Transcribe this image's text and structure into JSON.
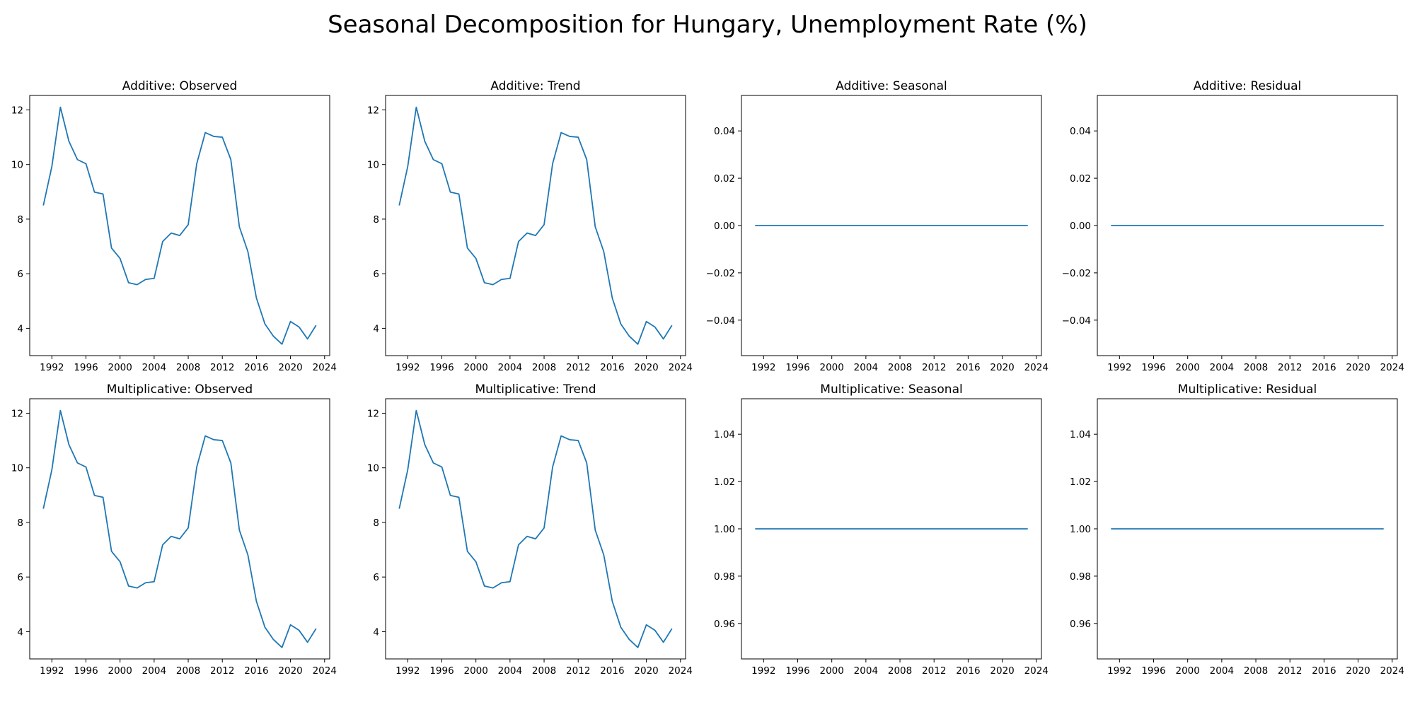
{
  "figure_title": "Seasonal Decomposition for Hungary, Unemployment Rate (%)",
  "line_color": "#1f77b4",
  "chart_data": [
    {
      "type": "line",
      "title": "Additive: Observed",
      "x": [
        1991,
        1992,
        1993,
        1994,
        1995,
        1996,
        1997,
        1998,
        1999,
        2000,
        2001,
        2002,
        2003,
        2004,
        2005,
        2006,
        2007,
        2008,
        2009,
        2010,
        2011,
        2012,
        2013,
        2014,
        2015,
        2016,
        2017,
        2018,
        2019,
        2020,
        2021,
        2022,
        2023
      ],
      "y": [
        8.5,
        9.93,
        12.1,
        10.85,
        10.18,
        10.03,
        8.99,
        8.92,
        6.94,
        6.56,
        5.67,
        5.6,
        5.79,
        5.83,
        7.18,
        7.49,
        7.4,
        7.8,
        10.03,
        11.17,
        11.03,
        11.0,
        10.18,
        7.72,
        6.81,
        5.11,
        4.16,
        3.71,
        3.42,
        4.25,
        4.05,
        3.61,
        4.11
      ],
      "xticks": [
        "1992",
        "1996",
        "2000",
        "2004",
        "2008",
        "2012",
        "2016",
        "2020",
        "2024"
      ],
      "yticks": [
        "4",
        "6",
        "8",
        "10",
        "12"
      ],
      "xlim": [
        1989.4,
        2024.6
      ],
      "ylim": [
        3.0,
        12.53
      ]
    },
    {
      "type": "line",
      "title": "Additive: Trend",
      "x": [
        1991,
        1992,
        1993,
        1994,
        1995,
        1996,
        1997,
        1998,
        1999,
        2000,
        2001,
        2002,
        2003,
        2004,
        2005,
        2006,
        2007,
        2008,
        2009,
        2010,
        2011,
        2012,
        2013,
        2014,
        2015,
        2016,
        2017,
        2018,
        2019,
        2020,
        2021,
        2022,
        2023
      ],
      "y": [
        8.5,
        9.93,
        12.1,
        10.85,
        10.18,
        10.03,
        8.99,
        8.92,
        6.94,
        6.56,
        5.67,
        5.6,
        5.79,
        5.83,
        7.18,
        7.49,
        7.4,
        7.8,
        10.03,
        11.17,
        11.03,
        11.0,
        10.18,
        7.72,
        6.81,
        5.11,
        4.16,
        3.71,
        3.42,
        4.25,
        4.05,
        3.61,
        4.11
      ],
      "xticks": [
        "1992",
        "1996",
        "2000",
        "2004",
        "2008",
        "2012",
        "2016",
        "2020",
        "2024"
      ],
      "yticks": [
        "4",
        "6",
        "8",
        "10",
        "12"
      ],
      "xlim": [
        1989.4,
        2024.6
      ],
      "ylim": [
        3.0,
        12.53
      ]
    },
    {
      "type": "line",
      "title": "Additive: Seasonal",
      "x": [
        1991,
        1992,
        1993,
        1994,
        1995,
        1996,
        1997,
        1998,
        1999,
        2000,
        2001,
        2002,
        2003,
        2004,
        2005,
        2006,
        2007,
        2008,
        2009,
        2010,
        2011,
        2012,
        2013,
        2014,
        2015,
        2016,
        2017,
        2018,
        2019,
        2020,
        2021,
        2022,
        2023
      ],
      "y": [
        0,
        0,
        0,
        0,
        0,
        0,
        0,
        0,
        0,
        0,
        0,
        0,
        0,
        0,
        0,
        0,
        0,
        0,
        0,
        0,
        0,
        0,
        0,
        0,
        0,
        0,
        0,
        0,
        0,
        0,
        0,
        0,
        0
      ],
      "xticks": [
        "1992",
        "1996",
        "2000",
        "2004",
        "2008",
        "2012",
        "2016",
        "2020",
        "2024"
      ],
      "yticks": [
        "−0.04",
        "−0.02",
        "0.00",
        "0.02",
        "0.04"
      ],
      "xlim": [
        1989.4,
        2024.6
      ],
      "ylim": [
        -0.055,
        0.055
      ]
    },
    {
      "type": "line",
      "title": "Additive: Residual",
      "x": [
        1991,
        1992,
        1993,
        1994,
        1995,
        1996,
        1997,
        1998,
        1999,
        2000,
        2001,
        2002,
        2003,
        2004,
        2005,
        2006,
        2007,
        2008,
        2009,
        2010,
        2011,
        2012,
        2013,
        2014,
        2015,
        2016,
        2017,
        2018,
        2019,
        2020,
        2021,
        2022,
        2023
      ],
      "y": [
        0,
        0,
        0,
        0,
        0,
        0,
        0,
        0,
        0,
        0,
        0,
        0,
        0,
        0,
        0,
        0,
        0,
        0,
        0,
        0,
        0,
        0,
        0,
        0,
        0,
        0,
        0,
        0,
        0,
        0,
        0,
        0,
        0
      ],
      "xticks": [
        "1992",
        "1996",
        "2000",
        "2004",
        "2008",
        "2012",
        "2016",
        "2020",
        "2024"
      ],
      "yticks": [
        "−0.04",
        "−0.02",
        "0.00",
        "0.02",
        "0.04"
      ],
      "xlim": [
        1989.4,
        2024.6
      ],
      "ylim": [
        -0.055,
        0.055
      ]
    },
    {
      "type": "line",
      "title": "Multiplicative: Observed",
      "x": [
        1991,
        1992,
        1993,
        1994,
        1995,
        1996,
        1997,
        1998,
        1999,
        2000,
        2001,
        2002,
        2003,
        2004,
        2005,
        2006,
        2007,
        2008,
        2009,
        2010,
        2011,
        2012,
        2013,
        2014,
        2015,
        2016,
        2017,
        2018,
        2019,
        2020,
        2021,
        2022,
        2023
      ],
      "y": [
        8.5,
        9.93,
        12.1,
        10.85,
        10.18,
        10.03,
        8.99,
        8.92,
        6.94,
        6.56,
        5.67,
        5.6,
        5.79,
        5.83,
        7.18,
        7.49,
        7.4,
        7.8,
        10.03,
        11.17,
        11.03,
        11.0,
        10.18,
        7.72,
        6.81,
        5.11,
        4.16,
        3.71,
        3.42,
        4.25,
        4.05,
        3.61,
        4.11
      ],
      "xticks": [
        "1992",
        "1996",
        "2000",
        "2004",
        "2008",
        "2012",
        "2016",
        "2020",
        "2024"
      ],
      "yticks": [
        "4",
        "6",
        "8",
        "10",
        "12"
      ],
      "xlim": [
        1989.4,
        2024.6
      ],
      "ylim": [
        3.0,
        12.53
      ]
    },
    {
      "type": "line",
      "title": "Multiplicative: Trend",
      "x": [
        1991,
        1992,
        1993,
        1994,
        1995,
        1996,
        1997,
        1998,
        1999,
        2000,
        2001,
        2002,
        2003,
        2004,
        2005,
        2006,
        2007,
        2008,
        2009,
        2010,
        2011,
        2012,
        2013,
        2014,
        2015,
        2016,
        2017,
        2018,
        2019,
        2020,
        2021,
        2022,
        2023
      ],
      "y": [
        8.5,
        9.93,
        12.1,
        10.85,
        10.18,
        10.03,
        8.99,
        8.92,
        6.94,
        6.56,
        5.67,
        5.6,
        5.79,
        5.83,
        7.18,
        7.49,
        7.4,
        7.8,
        10.03,
        11.17,
        11.03,
        11.0,
        10.18,
        7.72,
        6.81,
        5.11,
        4.16,
        3.71,
        3.42,
        4.25,
        4.05,
        3.61,
        4.11
      ],
      "xticks": [
        "1992",
        "1996",
        "2000",
        "2004",
        "2008",
        "2012",
        "2016",
        "2020",
        "2024"
      ],
      "yticks": [
        "4",
        "6",
        "8",
        "10",
        "12"
      ],
      "xlim": [
        1989.4,
        2024.6
      ],
      "ylim": [
        3.0,
        12.53
      ]
    },
    {
      "type": "line",
      "title": "Multiplicative: Seasonal",
      "x": [
        1991,
        1992,
        1993,
        1994,
        1995,
        1996,
        1997,
        1998,
        1999,
        2000,
        2001,
        2002,
        2003,
        2004,
        2005,
        2006,
        2007,
        2008,
        2009,
        2010,
        2011,
        2012,
        2013,
        2014,
        2015,
        2016,
        2017,
        2018,
        2019,
        2020,
        2021,
        2022,
        2023
      ],
      "y": [
        1,
        1,
        1,
        1,
        1,
        1,
        1,
        1,
        1,
        1,
        1,
        1,
        1,
        1,
        1,
        1,
        1,
        1,
        1,
        1,
        1,
        1,
        1,
        1,
        1,
        1,
        1,
        1,
        1,
        1,
        1,
        1,
        1
      ],
      "xticks": [
        "1992",
        "1996",
        "2000",
        "2004",
        "2008",
        "2012",
        "2016",
        "2020",
        "2024"
      ],
      "yticks": [
        "0.96",
        "0.98",
        "1.00",
        "1.02",
        "1.04"
      ],
      "xlim": [
        1989.4,
        2024.6
      ],
      "ylim": [
        0.945,
        1.055
      ]
    },
    {
      "type": "line",
      "title": "Multiplicative: Residual",
      "x": [
        1991,
        1992,
        1993,
        1994,
        1995,
        1996,
        1997,
        1998,
        1999,
        2000,
        2001,
        2002,
        2003,
        2004,
        2005,
        2006,
        2007,
        2008,
        2009,
        2010,
        2011,
        2012,
        2013,
        2014,
        2015,
        2016,
        2017,
        2018,
        2019,
        2020,
        2021,
        2022,
        2023
      ],
      "y": [
        1,
        1,
        1,
        1,
        1,
        1,
        1,
        1,
        1,
        1,
        1,
        1,
        1,
        1,
        1,
        1,
        1,
        1,
        1,
        1,
        1,
        1,
        1,
        1,
        1,
        1,
        1,
        1,
        1,
        1,
        1,
        1,
        1
      ],
      "xticks": [
        "1992",
        "1996",
        "2000",
        "2004",
        "2008",
        "2012",
        "2016",
        "2020",
        "2024"
      ],
      "yticks": [
        "0.96",
        "0.98",
        "1.00",
        "1.02",
        "1.04"
      ],
      "xlim": [
        1989.4,
        2024.6
      ],
      "ylim": [
        0.945,
        1.055
      ]
    }
  ]
}
